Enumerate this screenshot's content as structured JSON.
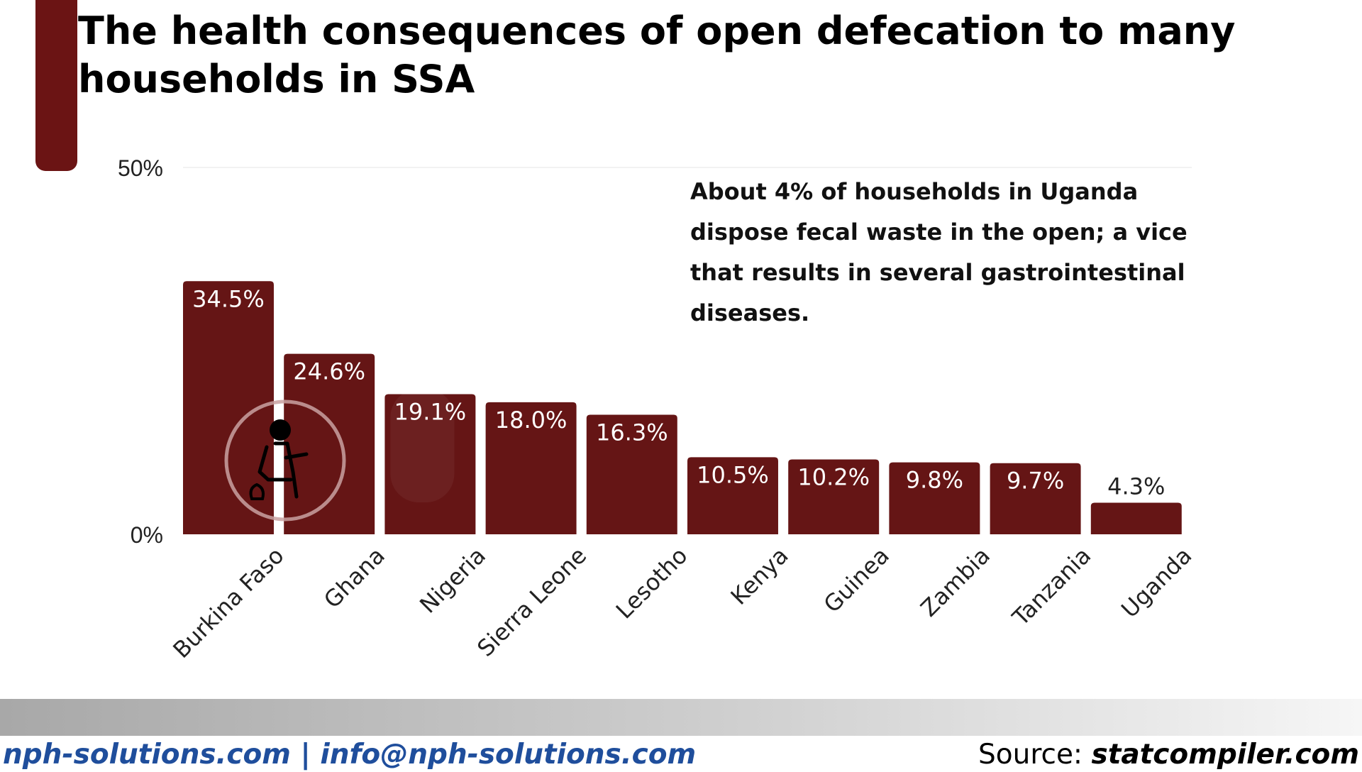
{
  "title": "The health consequences of open defecation to many households in SSA",
  "annotation": "About 4% of households in Uganda dispose fecal waste in the open; a vice that results in several gastrointestinal diseases.",
  "footer": {
    "contact": "nph-solutions.com | info@nph-solutions.com",
    "source_label": "Source:",
    "source_value": "statcompiler.com"
  },
  "icons": {
    "illustration": "open-defecation-icon"
  },
  "colors": {
    "bar": "#651515",
    "accent": "#6b1414",
    "contact_text": "#1f4e9c"
  },
  "chart_data": {
    "type": "bar",
    "title": "The health consequences of open defecation to many households in SSA",
    "xlabel": "",
    "ylabel": "",
    "ylim": [
      0,
      50
    ],
    "yticks": [
      {
        "value": 0,
        "label": "0%"
      },
      {
        "value": 50,
        "label": "50%"
      }
    ],
    "grid": true,
    "categories": [
      "Burkina Faso",
      "Ghana",
      "Nigeria",
      "Sierra Leone",
      "Lesotho",
      "Kenya",
      "Guinea",
      "Zambia",
      "Tanzania",
      "Uganda"
    ],
    "values": [
      34.5,
      24.6,
      19.1,
      18.0,
      16.3,
      10.5,
      10.2,
      9.8,
      9.7,
      4.3
    ],
    "value_labels": [
      "34.5%",
      "24.6%",
      "19.1%",
      "18.0%",
      "16.3%",
      "10.5%",
      "10.2%",
      "9.8%",
      "9.7%",
      "4.3%"
    ]
  }
}
